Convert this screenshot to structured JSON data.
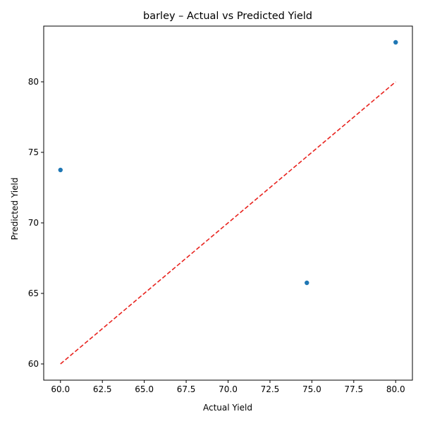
{
  "chart_data": {
    "type": "scatter",
    "title": "barley – Actual vs Predicted Yield",
    "xlabel": "Actual Yield",
    "ylabel": "Predicted Yield",
    "xlim": [
      59.0,
      81.0
    ],
    "ylim": [
      58.85,
      83.95
    ],
    "xticks": [
      60.0,
      62.5,
      65.0,
      67.5,
      70.0,
      72.5,
      75.0,
      77.5,
      80.0
    ],
    "xtick_labels": [
      "60.0",
      "62.5",
      "65.0",
      "67.5",
      "70.0",
      "72.5",
      "75.0",
      "77.5",
      "80.0"
    ],
    "yticks": [
      60,
      65,
      70,
      75,
      80
    ],
    "ytick_labels": [
      "60",
      "65",
      "70",
      "75",
      "80"
    ],
    "grid": false,
    "legend": "none",
    "series": [
      {
        "kind": "points",
        "color": "#1f77b4",
        "points": [
          {
            "x": 60.0,
            "y": 73.75
          },
          {
            "x": 74.7,
            "y": 65.75
          },
          {
            "x": 80.0,
            "y": 82.8
          }
        ]
      },
      {
        "kind": "reference-line",
        "style": "dashed",
        "color": "#e8231e",
        "points": [
          {
            "x": 60.0,
            "y": 60.0
          },
          {
            "x": 80.0,
            "y": 80.0
          }
        ]
      }
    ]
  }
}
